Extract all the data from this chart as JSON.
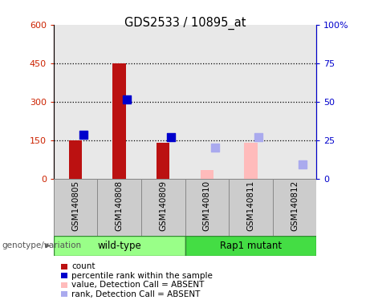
{
  "title": "GDS2533 / 10895_at",
  "samples": [
    "GSM140805",
    "GSM140808",
    "GSM140809",
    "GSM140810",
    "GSM140811",
    "GSM140812"
  ],
  "bar_values": [
    148,
    450,
    140,
    null,
    140,
    null
  ],
  "bar_colors": [
    "#bb1111",
    "#bb1111",
    "#bb1111",
    null,
    "#ffbbbb",
    null
  ],
  "dot_values": [
    170,
    308,
    163,
    null,
    163,
    null
  ],
  "dot_colors": [
    "#0000cc",
    "#0000cc",
    "#0000cc",
    null,
    null,
    null
  ],
  "absent_bar_values": [
    null,
    null,
    null,
    35,
    null,
    null
  ],
  "absent_bar_colors": [
    null,
    null,
    null,
    "#ffbbbb",
    null,
    null
  ],
  "absent_dot_values": [
    null,
    null,
    null,
    120,
    163,
    55
  ],
  "absent_dot_colors": [
    null,
    null,
    null,
    "#aaaaee",
    "#aaaaee",
    "#aaaaee"
  ],
  "ylim_left": [
    0,
    600
  ],
  "ylim_right": [
    0,
    100
  ],
  "yticks_left": [
    0,
    150,
    300,
    450,
    600
  ],
  "ytick_labels_left": [
    "0",
    "150",
    "300",
    "450",
    "600"
  ],
  "yticks_right": [
    0,
    25,
    50,
    75,
    100
  ],
  "ytick_labels_right": [
    "0",
    "25",
    "50",
    "75",
    "100%"
  ],
  "hlines": [
    150,
    300,
    450
  ],
  "left_axis_color": "#cc2200",
  "right_axis_color": "#0000cc",
  "wt_color": "#99ff88",
  "rap_color": "#44dd44",
  "group_label": "genotype/variation",
  "legend_items": [
    {
      "label": "count",
      "color": "#bb1111"
    },
    {
      "label": "percentile rank within the sample",
      "color": "#0000cc"
    },
    {
      "label": "value, Detection Call = ABSENT",
      "color": "#ffbbbb"
    },
    {
      "label": "rank, Detection Call = ABSENT",
      "color": "#aaaaee"
    }
  ],
  "bar_width": 0.3,
  "dot_size": 50,
  "col_bg": "#cccccc"
}
